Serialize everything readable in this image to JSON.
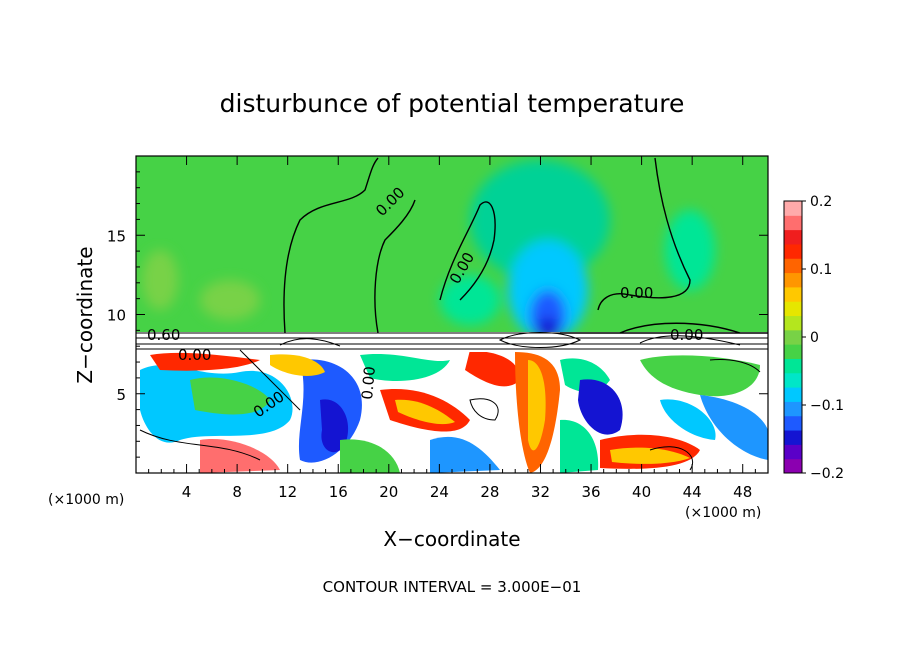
{
  "chart_data": {
    "type": "heatmap",
    "title": "disturbunce of potential temperature",
    "xlabel": "X−coordinate",
    "ylabel": "Z−coordinate",
    "x_unit_left": "(×1000 m)",
    "x_unit_right": "(×1000 m)",
    "footer": "CONTOUR INTERVAL = 3.000E−01",
    "xlim": [
      0,
      50
    ],
    "ylim": [
      0,
      20
    ],
    "x_ticks": [
      4,
      8,
      12,
      16,
      20,
      24,
      28,
      32,
      36,
      40,
      44,
      48
    ],
    "y_ticks": [
      5,
      10,
      15
    ],
    "colorbar": {
      "min": -0.2,
      "max": 0.2,
      "tick_labels": [
        "0.2",
        "0.1",
        "0",
        "−0.1",
        "−0.2"
      ],
      "tick_values": [
        0.2,
        0.1,
        0,
        -0.1,
        -0.2
      ],
      "colors": [
        "#8b00b0",
        "#5a00c8",
        "#1414d2",
        "#1e5aff",
        "#1e96ff",
        "#00c8ff",
        "#00e6c8",
        "#00e696",
        "#46d246",
        "#78d246",
        "#b4e61e",
        "#e6e600",
        "#ffc800",
        "#ff9600",
        "#ff6400",
        "#ff2800",
        "#f01e1e",
        "#ff6e6e",
        "#ffaaaa"
      ]
    },
    "contour_labels": [
      "0.00",
      "0.00",
      "0.00",
      "0.00",
      "0.00",
      "0.60",
      "0.00",
      "0.00"
    ],
    "upper_layer": {
      "z_range": [
        9,
        20
      ],
      "value_approx": 0.0,
      "color": "#46d246"
    },
    "lower_layer": {
      "z_range": [
        0,
        8
      ],
      "value_range": [
        -0.2,
        0.2
      ]
    }
  }
}
